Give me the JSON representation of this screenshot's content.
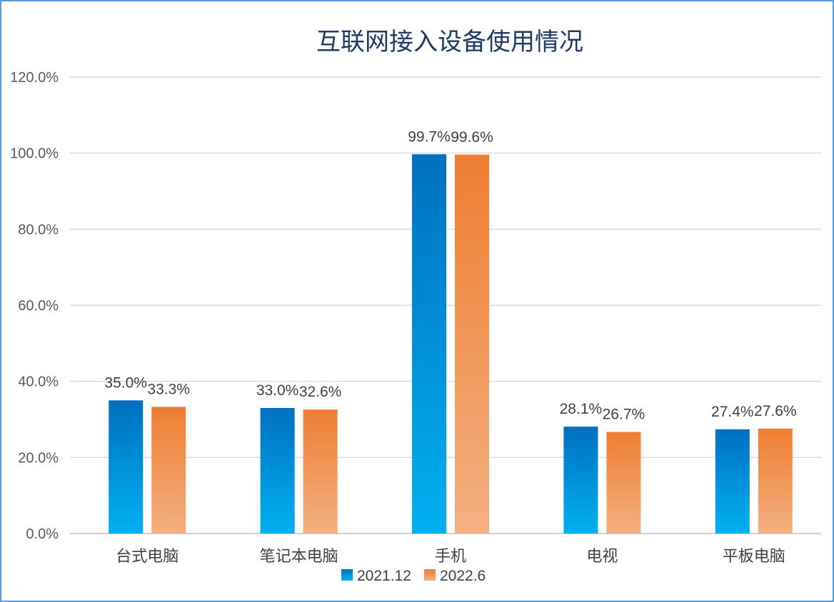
{
  "chart_data": {
    "type": "bar",
    "title": "互联网接入设备使用情况",
    "categories": [
      "台式电脑",
      "笔记本电脑",
      "手机",
      "电视",
      "平板电脑"
    ],
    "series": [
      {
        "name": "2021.12",
        "values": [
          35.0,
          33.0,
          99.7,
          28.1,
          27.4
        ],
        "labels": [
          "35.0%",
          "33.0%",
          "99.7%",
          "28.1%",
          "27.4%"
        ],
        "color_top": "#0070c0",
        "color_bottom": "#00b0f0"
      },
      {
        "name": "2022.6",
        "values": [
          33.3,
          32.6,
          99.6,
          26.7,
          27.6
        ],
        "labels": [
          "33.3%",
          "32.6%",
          "99.6%",
          "26.7%",
          "27.6%"
        ],
        "color_top": "#ed7d31",
        "color_bottom": "#f4b183"
      }
    ],
    "y_ticks": [
      "0.0%",
      "20.0%",
      "40.0%",
      "60.0%",
      "80.0%",
      "100.0%",
      "120.0%"
    ],
    "ylim": [
      0,
      120
    ],
    "grid": true,
    "legend_position": "bottom"
  }
}
